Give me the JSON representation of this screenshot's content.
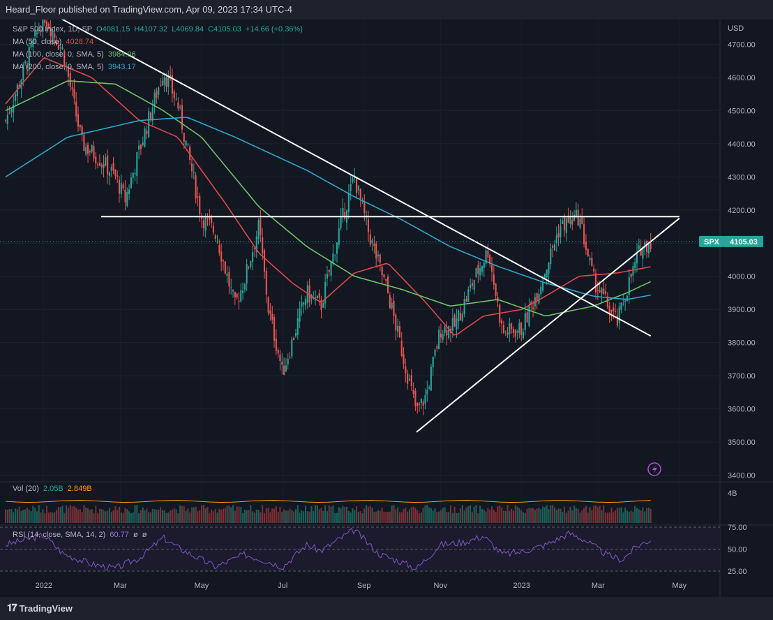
{
  "header": {
    "published_text": "Heard_Floor published on TradingView.com, Apr 09, 2023 17:34 UTC-4"
  },
  "footer": {
    "brand": "TradingView"
  },
  "legend": {
    "symbol": "S&P 500 Index, 1D, SP",
    "ohlc": {
      "open": "O4081.15",
      "high": "H4107.32",
      "low": "L4069.84",
      "close": "C4105.03",
      "change": "+14.66 (+0.36%)"
    },
    "ma50": {
      "label": "MA (50, close)",
      "value": "4028.74",
      "color": "#e04848"
    },
    "ma100": {
      "label": "MA (100, close, 0, SMA, 5)",
      "value": "3984.06",
      "color": "#6ac46a"
    },
    "ma200": {
      "label": "MA (200, close, 0, SMA, 5)",
      "value": "3943.17",
      "color": "#2aa7c9"
    },
    "vol": {
      "label": "Vol (20)",
      "v1": "2.05B",
      "v2": "2.849B"
    },
    "rsi": {
      "label": "RSI (14, close, SMA, 14, 2)",
      "v1": "60.77",
      "v2": "ø",
      "v3": "ø"
    }
  },
  "price_badge": {
    "symbol": "SPX",
    "value": "4105.03"
  },
  "axis": {
    "currency": "USD",
    "vol_tick": "4B"
  },
  "colors": {
    "up": "#26a69a",
    "down": "#ef5350",
    "rsi": "#7e57c2",
    "volume_ma": "#ff9800",
    "trendline": "#ffffff"
  },
  "chart_data": {
    "type": "candlestick",
    "title": "S&P 500 Index, 1D, SP",
    "y_axis_ticks": [
      "4700.00",
      "4600.00",
      "4500.00",
      "4400.00",
      "4300.00",
      "4200.00",
      "4100.00",
      "4000.00",
      "3900.00",
      "3800.00",
      "3700.00",
      "3600.00",
      "3500.00",
      "3400.00"
    ],
    "ylim": [
      3380,
      4760
    ],
    "rsi_ticks": [
      "75.00",
      "50.00",
      "25.00"
    ],
    "x_axis_ticks": [
      "2022",
      "Mar",
      "May",
      "Jul",
      "Sep",
      "Nov",
      "2023",
      "Mar",
      "May"
    ],
    "last_close": 4105.03,
    "anchors": {
      "close": [
        [
          2021.92,
          4470
        ],
        [
          2022.0,
          4790
        ],
        [
          2022.04,
          4680
        ],
        [
          2022.08,
          4400
        ],
        [
          2022.12,
          4350
        ],
        [
          2022.15,
          4300
        ],
        [
          2022.17,
          4230
        ],
        [
          2022.2,
          4380
        ],
        [
          2022.25,
          4620
        ],
        [
          2022.28,
          4520
        ],
        [
          2022.33,
          4180
        ],
        [
          2022.36,
          4130
        ],
        [
          2022.4,
          3910
        ],
        [
          2022.42,
          3990
        ],
        [
          2022.45,
          4150
        ],
        [
          2022.47,
          3900
        ],
        [
          2022.5,
          3710
        ],
        [
          2022.55,
          3950
        ],
        [
          2022.58,
          3910
        ],
        [
          2022.62,
          4150
        ],
        [
          2022.65,
          4300
        ],
        [
          2022.68,
          4130
        ],
        [
          2022.72,
          3950
        ],
        [
          2022.78,
          3590
        ],
        [
          2022.8,
          3640
        ],
        [
          2022.83,
          3840
        ],
        [
          2022.86,
          3850
        ],
        [
          2022.9,
          3990
        ],
        [
          2022.93,
          4080
        ],
        [
          2022.96,
          3830
        ],
        [
          2023.0,
          3840
        ],
        [
          2023.04,
          3980
        ],
        [
          2023.08,
          4150
        ],
        [
          2023.12,
          4180
        ],
        [
          2023.15,
          3990
        ],
        [
          2023.2,
          3860
        ],
        [
          2023.22,
          3960
        ],
        [
          2023.25,
          4090
        ],
        [
          2023.27,
          4105
        ]
      ],
      "ma50": [
        [
          2021.92,
          4520
        ],
        [
          2022.0,
          4660
        ],
        [
          2022.1,
          4600
        ],
        [
          2022.2,
          4470
        ],
        [
          2022.28,
          4420
        ],
        [
          2022.38,
          4220
        ],
        [
          2022.45,
          4070
        ],
        [
          2022.52,
          3980
        ],
        [
          2022.58,
          3920
        ],
        [
          2022.65,
          4010
        ],
        [
          2022.72,
          4040
        ],
        [
          2022.8,
          3920
        ],
        [
          2022.86,
          3820
        ],
        [
          2022.92,
          3880
        ],
        [
          2023.0,
          3900
        ],
        [
          2023.05,
          3940
        ],
        [
          2023.12,
          4000
        ],
        [
          2023.2,
          4010
        ],
        [
          2023.27,
          4028.74
        ]
      ],
      "ma100": [
        [
          2021.92,
          4500
        ],
        [
          2022.05,
          4590
        ],
        [
          2022.15,
          4580
        ],
        [
          2022.25,
          4500
        ],
        [
          2022.33,
          4420
        ],
        [
          2022.45,
          4210
        ],
        [
          2022.55,
          4090
        ],
        [
          2022.65,
          4000
        ],
        [
          2022.75,
          3960
        ],
        [
          2022.85,
          3910
        ],
        [
          2022.95,
          3930
        ],
        [
          2023.05,
          3880
        ],
        [
          2023.15,
          3910
        ],
        [
          2023.22,
          3950
        ],
        [
          2023.27,
          3984.06
        ]
      ],
      "ma200": [
        [
          2021.92,
          4300
        ],
        [
          2022.05,
          4420
        ],
        [
          2022.2,
          4470
        ],
        [
          2022.3,
          4480
        ],
        [
          2022.4,
          4420
        ],
        [
          2022.55,
          4320
        ],
        [
          2022.65,
          4240
        ],
        [
          2022.75,
          4170
        ],
        [
          2022.85,
          4090
        ],
        [
          2022.95,
          4030
        ],
        [
          2023.05,
          3980
        ],
        [
          2023.15,
          3940
        ],
        [
          2023.22,
          3930
        ],
        [
          2023.27,
          3943.17
        ]
      ],
      "rsi": [
        [
          2021.92,
          55
        ],
        [
          2022.0,
          66
        ],
        [
          2022.04,
          45
        ],
        [
          2022.1,
          33
        ],
        [
          2022.15,
          28
        ],
        [
          2022.2,
          40
        ],
        [
          2022.25,
          63
        ],
        [
          2022.28,
          52
        ],
        [
          2022.33,
          38
        ],
        [
          2022.36,
          30
        ],
        [
          2022.42,
          44
        ],
        [
          2022.47,
          36
        ],
        [
          2022.5,
          30
        ],
        [
          2022.55,
          55
        ],
        [
          2022.58,
          48
        ],
        [
          2022.62,
          62
        ],
        [
          2022.65,
          72
        ],
        [
          2022.7,
          45
        ],
        [
          2022.75,
          35
        ],
        [
          2022.78,
          28
        ],
        [
          2022.83,
          55
        ],
        [
          2022.88,
          58
        ],
        [
          2022.92,
          65
        ],
        [
          2022.96,
          44
        ],
        [
          2023.0,
          47
        ],
        [
          2023.05,
          55
        ],
        [
          2023.1,
          68
        ],
        [
          2023.13,
          61
        ],
        [
          2023.18,
          43
        ],
        [
          2023.21,
          38
        ],
        [
          2023.24,
          53
        ],
        [
          2023.27,
          60.77
        ]
      ]
    },
    "trendlines": [
      {
        "name": "descending-resistance",
        "from": [
          2022.02,
          4790
        ],
        "to": [
          2023.27,
          3820
        ]
      },
      {
        "name": "ascending-support",
        "from": [
          2022.78,
          3530
        ],
        "to": [
          2023.33,
          4175
        ]
      },
      {
        "name": "horizontal-4180",
        "from": [
          2022.12,
          4180
        ],
        "to": [
          2023.33,
          4180
        ]
      }
    ]
  }
}
